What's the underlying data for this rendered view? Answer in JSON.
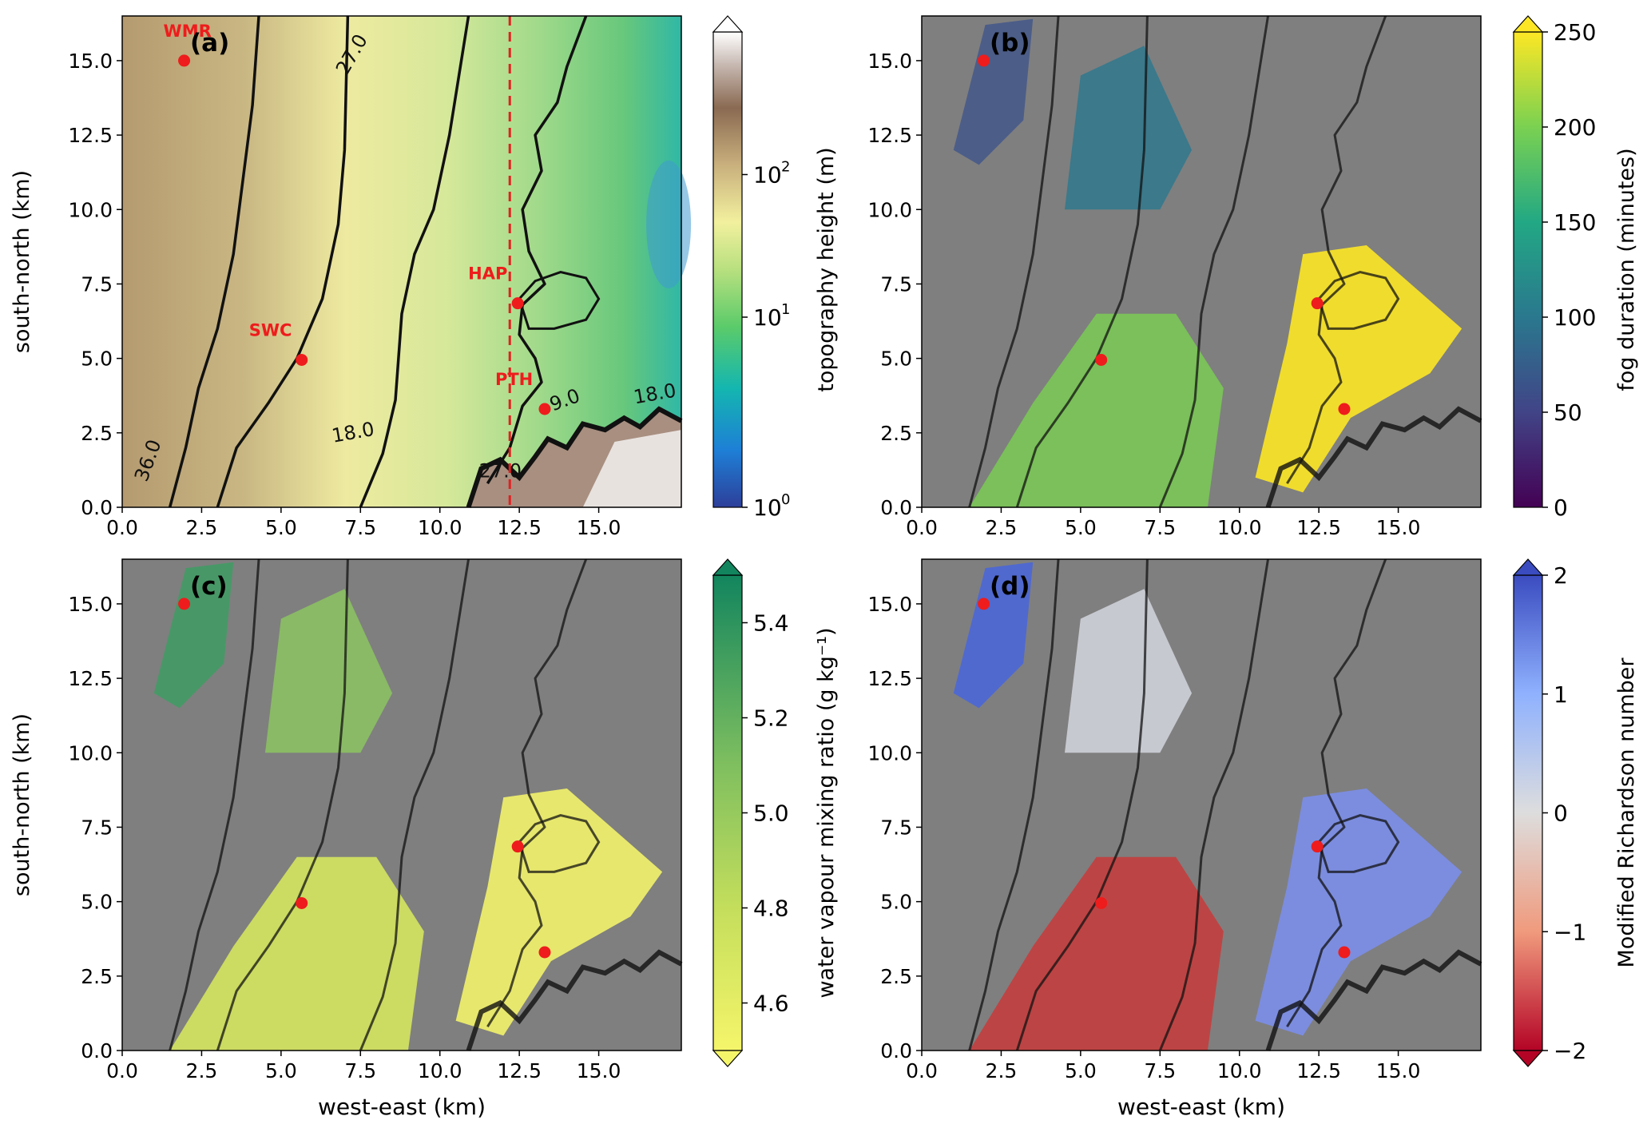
{
  "figure": {
    "axis_labels": {
      "x": "west-east (km)",
      "y": "south-north (km)"
    },
    "x_ticks": [
      "0.0",
      "2.5",
      "5.0",
      "7.5",
      "10.0",
      "12.5",
      "15.0"
    ],
    "y_ticks": [
      "0.0",
      "2.5",
      "5.0",
      "7.5",
      "10.0",
      "12.5",
      "15.0"
    ],
    "stations": [
      {
        "name": "WMR",
        "x": 1.95,
        "y": 15.0
      },
      {
        "name": "SWC",
        "x": 5.65,
        "y": 4.95
      },
      {
        "name": "HAP",
        "x": 12.45,
        "y": 6.85
      },
      {
        "name": "PTH",
        "x": 13.3,
        "y": 3.3
      }
    ],
    "contour_labels": [
      "27.0",
      "36.0",
      "18.0",
      "9.0",
      "18.0",
      "27.0"
    ],
    "colors": {
      "station": "#ee1c1c",
      "background_masked": "#7f7f7f",
      "contour": "#111111",
      "cross_section_line": "#e02020"
    },
    "cross_section_x_km": 12.2
  },
  "panels": [
    {
      "letter": "(a)",
      "colorbar_label": "topography height (m)",
      "colorbar_ticks": [
        "10",
        "10",
        "10"
      ],
      "colorbar_exponents": [
        "2",
        "1",
        "0"
      ],
      "colormap": "terrain",
      "scale": "log"
    },
    {
      "letter": "(b)",
      "colorbar_label": "fog duration (minutes)",
      "colorbar_ticks": [
        "250",
        "200",
        "150",
        "100",
        "50",
        "0"
      ],
      "colormap": "viridis"
    },
    {
      "letter": "(c)",
      "colorbar_label": "water vapour mixing ratio (g kg⁻¹)",
      "colorbar_ticks": [
        "5.4",
        "5.2",
        "5.0",
        "4.8",
        "4.6"
      ],
      "colormap": "summer_r"
    },
    {
      "letter": "(d)",
      "colorbar_label": "Modified Richardson number",
      "colorbar_ticks": [
        "2",
        "1",
        "0",
        "−1",
        "−2"
      ],
      "colormap": "coolwarm_r"
    }
  ],
  "chart_data": [
    {
      "type": "heatmap",
      "title": "(a)",
      "xlabel": "",
      "ylabel": "south-north (km)",
      "xlim": [
        0,
        17.6
      ],
      "ylim": [
        0,
        16.5
      ],
      "colorbar": "topography height (m)",
      "colorbar_range": [
        1,
        500
      ],
      "colorbar_scale": "log",
      "contour_levels": [
        9.0,
        18.0,
        27.0,
        36.0
      ]
    },
    {
      "type": "heatmap",
      "title": "(b)",
      "xlabel": "",
      "ylabel": "",
      "xlim": [
        0,
        17.6
      ],
      "ylim": [
        0,
        16.5
      ],
      "colorbar": "fog duration (minutes)",
      "colorbar_range": [
        0,
        250
      ]
    },
    {
      "type": "heatmap",
      "title": "(c)",
      "xlabel": "west-east (km)",
      "ylabel": "south-north (km)",
      "xlim": [
        0,
        17.6
      ],
      "ylim": [
        0,
        16.5
      ],
      "colorbar": "water vapour mixing ratio (g kg⁻¹)",
      "colorbar_range": [
        4.5,
        5.5
      ]
    },
    {
      "type": "heatmap",
      "title": "(d)",
      "xlabel": "west-east (km)",
      "ylabel": "",
      "xlim": [
        0,
        17.6
      ],
      "ylim": [
        0,
        16.5
      ],
      "colorbar": "Modified Richardson number",
      "colorbar_range": [
        -2,
        2
      ]
    }
  ]
}
